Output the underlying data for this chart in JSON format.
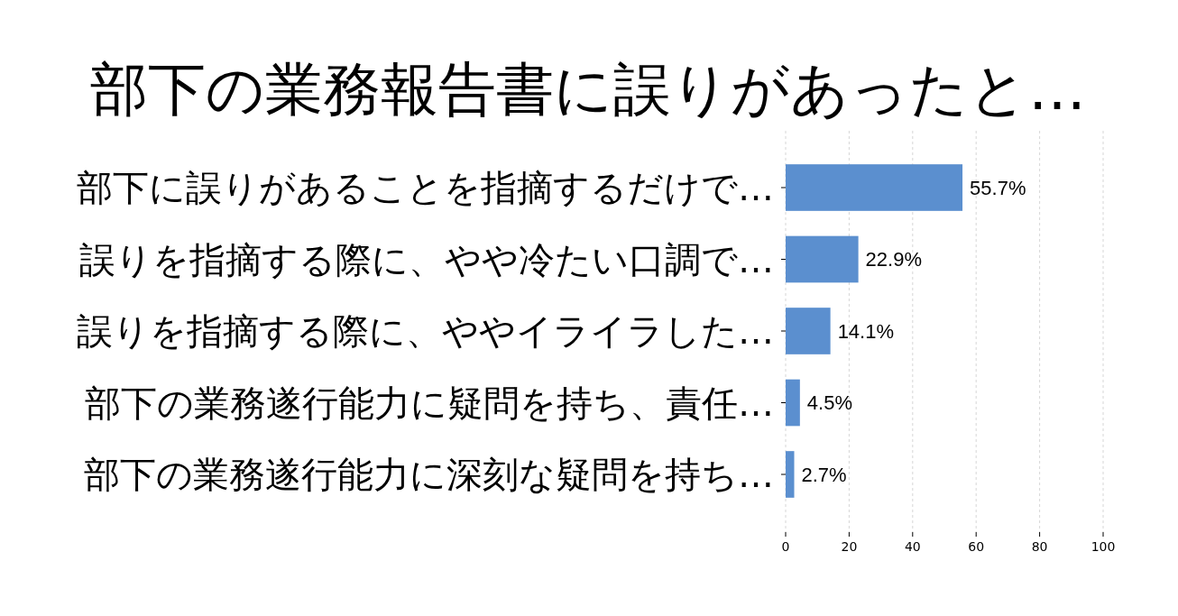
{
  "chart_data": {
    "type": "bar",
    "orientation": "horizontal",
    "title": "部下の業務報告書に誤りがあったと…",
    "categories": [
      "部下に誤りがあることを指摘するだけで…",
      "誤りを指摘する際に、やや冷たい口調で…",
      "誤りを指摘する際に、ややイライラした…",
      "部下の業務遂行能力に疑問を持ち、責任…",
      "部下の業務遂行能力に深刻な疑問を持ち…"
    ],
    "values": [
      55.7,
      22.9,
      14.1,
      4.5,
      2.7
    ],
    "value_labels": [
      "55.7%",
      "22.9%",
      "14.1%",
      "4.5%",
      "2.7%"
    ],
    "color": "#5b8fcf",
    "xlim": [
      0,
      100
    ],
    "xticks": [
      0,
      20,
      40,
      60,
      80,
      100
    ],
    "grid": "x"
  }
}
